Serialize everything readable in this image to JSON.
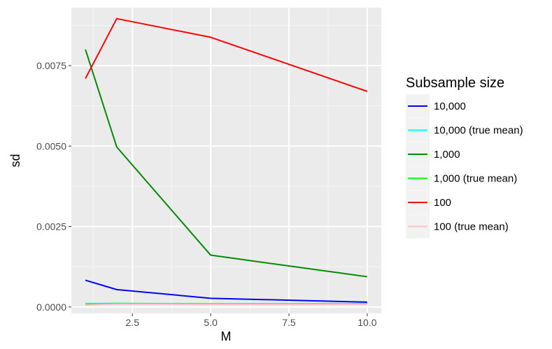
{
  "chart_data": {
    "type": "line",
    "xlabel": "M",
    "ylabel": "sd",
    "xlim": [
      0.55,
      10.45
    ],
    "ylim": [
      -0.0002,
      0.0093
    ],
    "x_ticks": [
      2.5,
      5.0,
      7.5,
      10.0
    ],
    "x_tick_labels": [
      "2.5",
      "5.0",
      "7.5",
      "10.0"
    ],
    "y_ticks": [
      0.0,
      0.0025,
      0.005,
      0.0075
    ],
    "y_tick_labels": [
      "0.0000",
      "0.0025",
      "0.0050",
      "0.0075"
    ],
    "grid": true,
    "legend": {
      "title": "Subsample size",
      "position": "right",
      "entries": [
        "10,000",
        "10,000 (true mean)",
        "1,000",
        "1,000 (true mean)",
        "100",
        "100 (true mean)"
      ]
    },
    "series": [
      {
        "name": "10,000",
        "color": "#0000ff",
        "x": [
          1,
          2,
          5,
          10
        ],
        "y": [
          0.00083,
          0.00054,
          0.00027,
          0.00015
        ]
      },
      {
        "name": "10,000 (true mean)",
        "color": "#00ffff",
        "x": [
          1,
          2,
          5,
          10
        ],
        "y": [
          0.00011,
          0.00011,
          0.0001,
          0.0001
        ]
      },
      {
        "name": "1,000",
        "color": "#008b00",
        "x": [
          1,
          2,
          5,
          10
        ],
        "y": [
          0.008,
          0.00497,
          0.00161,
          0.00094
        ]
      },
      {
        "name": "1,000 (true mean)",
        "color": "#00ff00",
        "x": [
          1,
          2,
          5,
          10
        ],
        "y": [
          8e-05,
          0.00011,
          9e-05,
          9e-05
        ]
      },
      {
        "name": "100",
        "color": "#ff0000",
        "x": [
          1,
          2,
          5,
          10
        ],
        "y": [
          0.0071,
          0.00896,
          0.00838,
          0.0067
        ]
      },
      {
        "name": "100 (true mean)",
        "color": "#ffc0cb",
        "x": [
          1,
          2,
          5,
          10
        ],
        "y": [
          6e-05,
          9e-05,
          8e-05,
          8e-05
        ]
      }
    ]
  }
}
